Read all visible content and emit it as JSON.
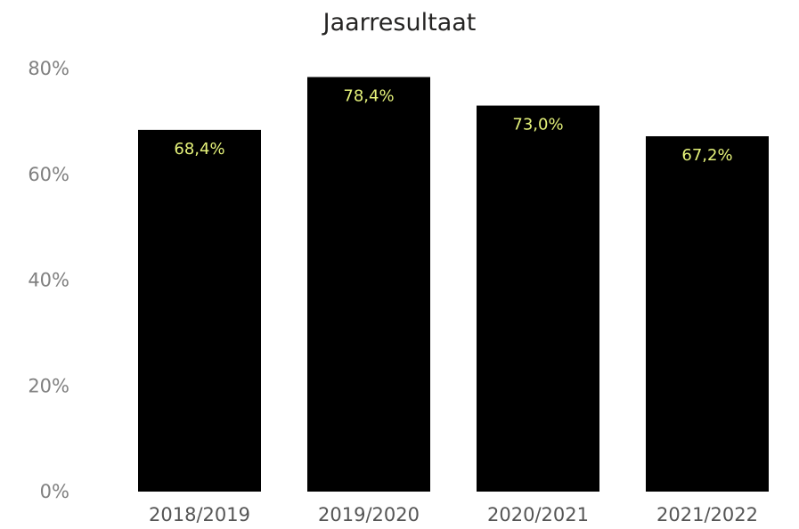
{
  "chart_data": {
    "type": "bar",
    "title": "Jaarresultaat",
    "categories": [
      "2018/2019",
      "2019/2020",
      "2020/2021",
      "2021/2022"
    ],
    "values": [
      68.4,
      78.4,
      73.0,
      67.2
    ],
    "data_labels": [
      "68,4%",
      "78,4%",
      "73,0%",
      "67,2%"
    ],
    "y_ticks": [
      0,
      20,
      40,
      60,
      80
    ],
    "y_tick_labels": [
      "0%",
      "20%",
      "40%",
      "60%",
      "80%"
    ],
    "ylim": [
      0,
      80
    ],
    "grid": false,
    "legend": "none",
    "colors": {
      "bar": "#000000",
      "data_label": "#E5F27A",
      "axis_text": "#808080",
      "title": "#252423"
    }
  }
}
